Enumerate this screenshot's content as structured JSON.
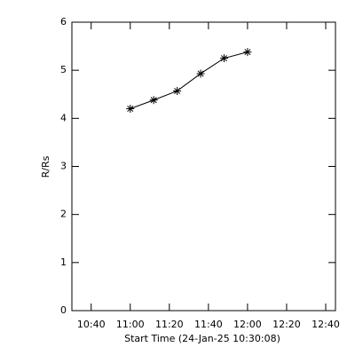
{
  "chart_data": {
    "type": "scatter-line",
    "x_label": "Start Time (24-Jan-25 10:30:08)",
    "y_label": "R/Rs",
    "x": [
      "11:00",
      "11:12",
      "11:24",
      "11:36",
      "11:48",
      "12:00"
    ],
    "values": [
      4.2,
      4.38,
      4.57,
      4.93,
      5.25,
      5.38
    ],
    "color": "#000000",
    "xlim": [
      "10:30:08",
      "12:45"
    ],
    "xticks": [
      "10:40",
      "11:00",
      "11:20",
      "11:40",
      "12:00",
      "12:20",
      "12:40"
    ],
    "ylim": [
      0,
      6
    ],
    "yticks": [
      0,
      1,
      2,
      3,
      4,
      5,
      6
    ]
  }
}
